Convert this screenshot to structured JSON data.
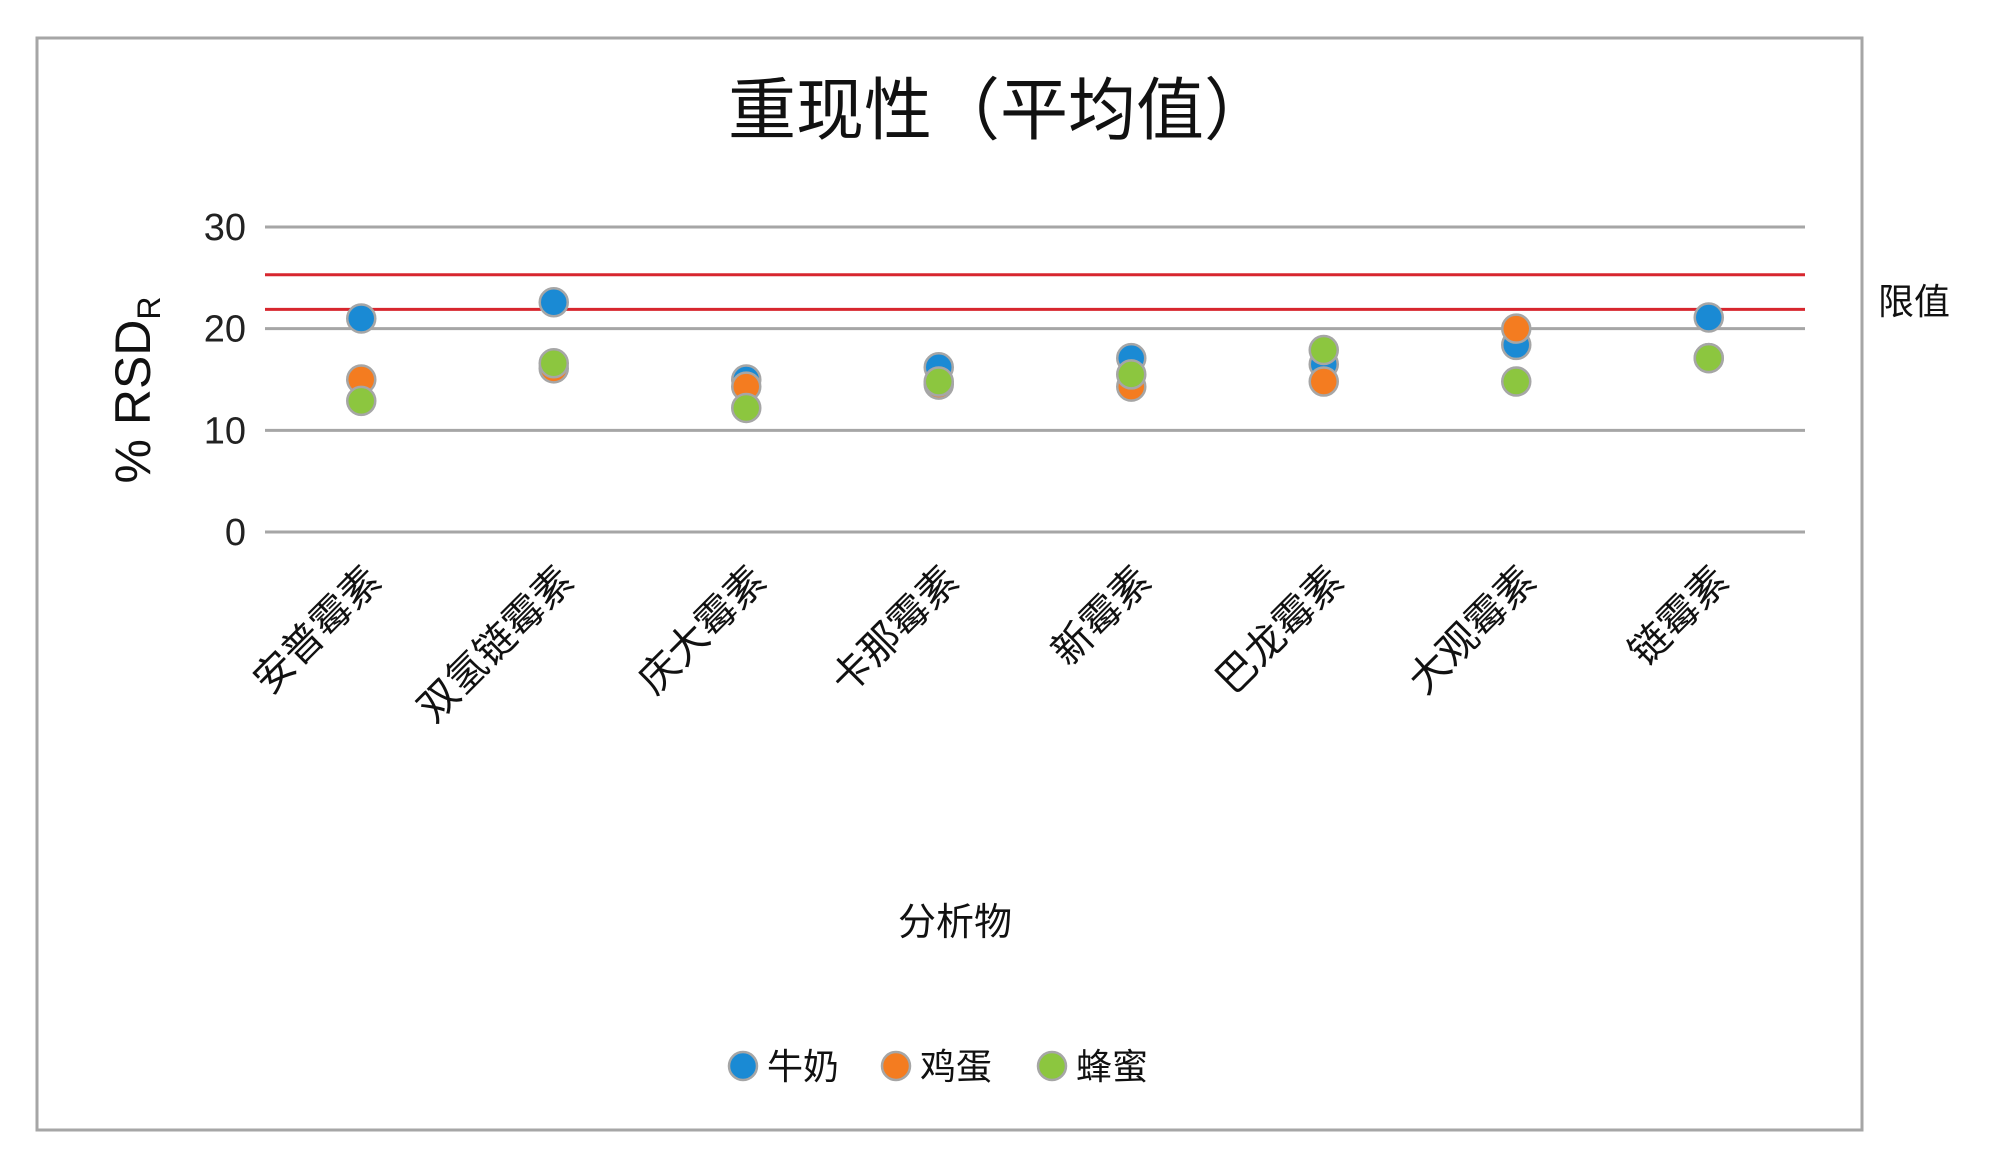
{
  "chart_data": {
    "type": "scatter",
    "title": "重现性（平均值）",
    "xlabel": "分析物",
    "ylabel": "% RSD",
    "ylabel_subscript": "R",
    "ylim": [
      0,
      30
    ],
    "yticks": [
      0,
      10,
      20,
      30
    ],
    "grid": true,
    "legend_position": "bottom",
    "categories": [
      "安普霉素",
      "双氢链霉素",
      "庆大霉素",
      "卡那霉素",
      "新霉素",
      "巴龙霉素",
      "大观霉素",
      "链霉素"
    ],
    "series": [
      {
        "name": "牛奶",
        "color": "#1a8ad4",
        "values": [
          21,
          22.6,
          15,
          16.2,
          17.1,
          16.5,
          18.4,
          21.1
        ]
      },
      {
        "name": "鸡蛋",
        "color": "#f47c20",
        "values": [
          15,
          16.1,
          14.3,
          14.5,
          14.3,
          14.8,
          20,
          17.1
        ]
      },
      {
        "name": "蜂蜜",
        "color": "#8cc63f",
        "values": [
          12.9,
          16.6,
          12.2,
          14.8,
          15.5,
          17.9,
          14.8,
          17.1
        ]
      }
    ],
    "limit_label": "限值",
    "limit_lines": [
      25.3,
      21.9
    ],
    "limit_color": "#d7262e"
  }
}
